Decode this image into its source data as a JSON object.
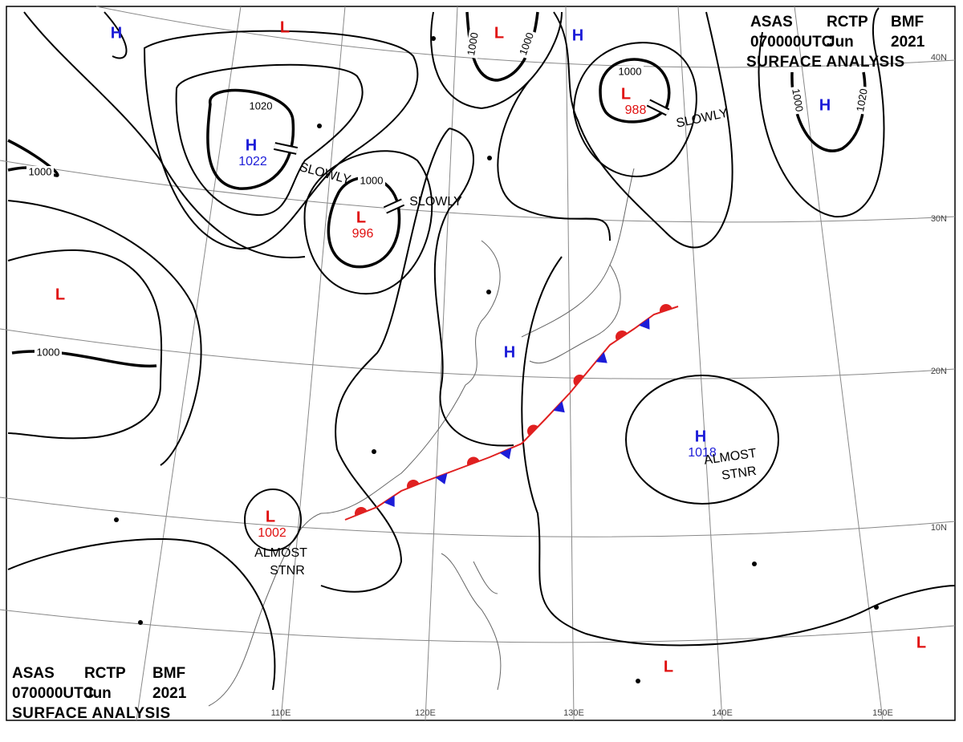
{
  "header": {
    "line1": [
      "ASAS",
      "RCTP",
      "BMF"
    ],
    "line2": [
      "070000UTC",
      "Jun",
      "2021"
    ],
    "line3": "SURFACE ANALYSIS"
  },
  "centers": [
    {
      "type": "H",
      "pressure": null
    },
    {
      "type": "L",
      "pressure": null
    },
    {
      "type": "L",
      "pressure": null
    },
    {
      "type": "H",
      "pressure": null
    },
    {
      "type": "L",
      "pressure": "988"
    },
    {
      "type": "H",
      "pressure": null
    },
    {
      "type": "H",
      "pressure": "1022"
    },
    {
      "type": "L",
      "pressure": "996"
    },
    {
      "type": "L",
      "pressure": null
    },
    {
      "type": "H",
      "pressure": null
    },
    {
      "type": "H",
      "pressure": "1018"
    },
    {
      "type": "L",
      "pressure": "1002"
    },
    {
      "type": "L",
      "pressure": null
    },
    {
      "type": "L",
      "pressure": null
    }
  ],
  "isobar_labels": [
    "1020",
    "1000",
    "1000",
    "1000",
    "1000",
    "1000",
    "1020",
    "1000",
    "1000"
  ],
  "movements": [
    {
      "lines": [
        "SLOWLY"
      ]
    },
    {
      "lines": [
        "SLOWLY"
      ]
    },
    {
      "lines": [
        "SLOWLY"
      ]
    },
    {
      "lines": [
        "ALMOST",
        "STNR"
      ]
    },
    {
      "lines": [
        "ALMOST",
        "STNR"
      ]
    }
  ],
  "lat_labels": [
    "40N",
    "30N",
    "20N",
    "10N"
  ],
  "lon_labels": [
    "110E",
    "120E",
    "130E",
    "140E",
    "150E"
  ]
}
